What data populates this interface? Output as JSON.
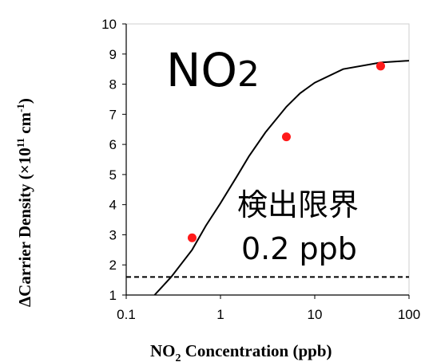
{
  "chart_data": {
    "type": "scatter",
    "x_scale": "log",
    "xlim": [
      0.1,
      100
    ],
    "ylim": [
      1,
      10
    ],
    "x_ticks": [
      0.1,
      1,
      10,
      100
    ],
    "x_tick_labels": [
      "0.1",
      "1",
      "10",
      "100"
    ],
    "y_ticks": [
      1,
      2,
      3,
      4,
      5,
      6,
      7,
      8,
      9,
      10
    ],
    "y_tick_labels": [
      "1",
      "2",
      "3",
      "4",
      "5",
      "6",
      "7",
      "8",
      "9",
      "10"
    ],
    "xlabel": {
      "pre": "NO",
      "sub": "2",
      "post": " Concentration (ppb)"
    },
    "ylabel": {
      "pre": "ΔCarrier Density (×10",
      "sup": "11",
      "post": " cm",
      "sup2": "-1",
      "end": ")"
    },
    "gas_label": {
      "pre": "NO",
      "sub": "2"
    },
    "annotation": [
      "検出限界",
      "0.2 ppb"
    ],
    "points": [
      {
        "x": 0.5,
        "y": 2.9
      },
      {
        "x": 5,
        "y": 6.25
      },
      {
        "x": 50,
        "y": 8.6
      }
    ],
    "fit_curve": [
      {
        "x": 0.2,
        "y": 1.0
      },
      {
        "x": 0.3,
        "y": 1.6
      },
      {
        "x": 0.5,
        "y": 2.5
      },
      {
        "x": 0.7,
        "y": 3.3
      },
      {
        "x": 1,
        "y": 4.05
      },
      {
        "x": 1.5,
        "y": 4.95
      },
      {
        "x": 2,
        "y": 5.6
      },
      {
        "x": 3,
        "y": 6.4
      },
      {
        "x": 5,
        "y": 7.25
      },
      {
        "x": 7,
        "y": 7.7
      },
      {
        "x": 10,
        "y": 8.05
      },
      {
        "x": 20,
        "y": 8.5
      },
      {
        "x": 50,
        "y": 8.72
      },
      {
        "x": 100,
        "y": 8.78
      }
    ],
    "detection_limit_y": 1.6,
    "grid": false,
    "colors": {
      "points": "#ff1a1a",
      "line": "#000000",
      "background": "#ffffff"
    }
  }
}
